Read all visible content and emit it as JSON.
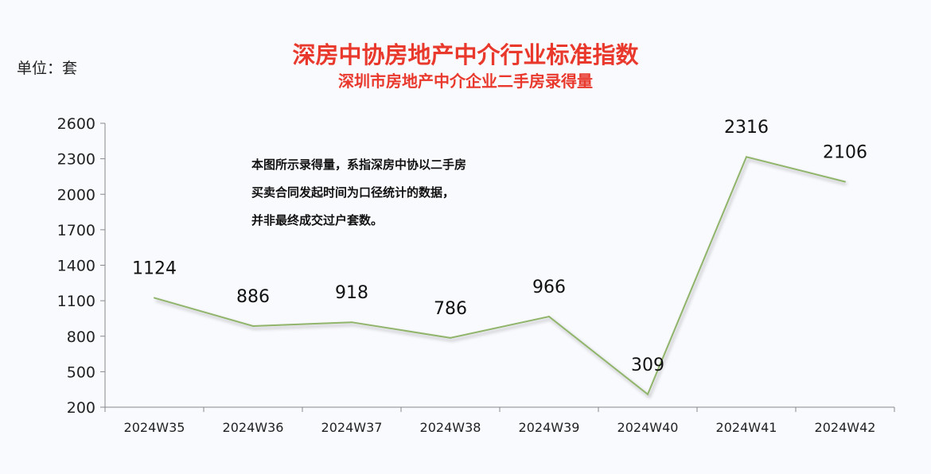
{
  "unit_label": "单位：套",
  "note": [
    "本图所示录得量，系指深房中协以二手房",
    "买卖合同发起时间为口径统计的数据，",
    "并非最终成交过户套数。"
  ],
  "chart_data": {
    "type": "line",
    "title": "深房中协房地产中介行业标准指数",
    "subtitle": "深圳市房地产中介企业二手房录得量",
    "categories": [
      "2024W35",
      "2024W36",
      "2024W37",
      "2024W38",
      "2024W39",
      "2024W40",
      "2024W41",
      "2024W42"
    ],
    "values": [
      1124,
      886,
      918,
      786,
      966,
      309,
      2316,
      2106
    ],
    "ylim": [
      200,
      2600
    ],
    "yticks": [
      200,
      500,
      800,
      1100,
      1400,
      1700,
      2000,
      2300,
      2600
    ],
    "grid": false,
    "legend": "none",
    "line_color": "#8fb46a",
    "title_color": "#e8392c"
  }
}
